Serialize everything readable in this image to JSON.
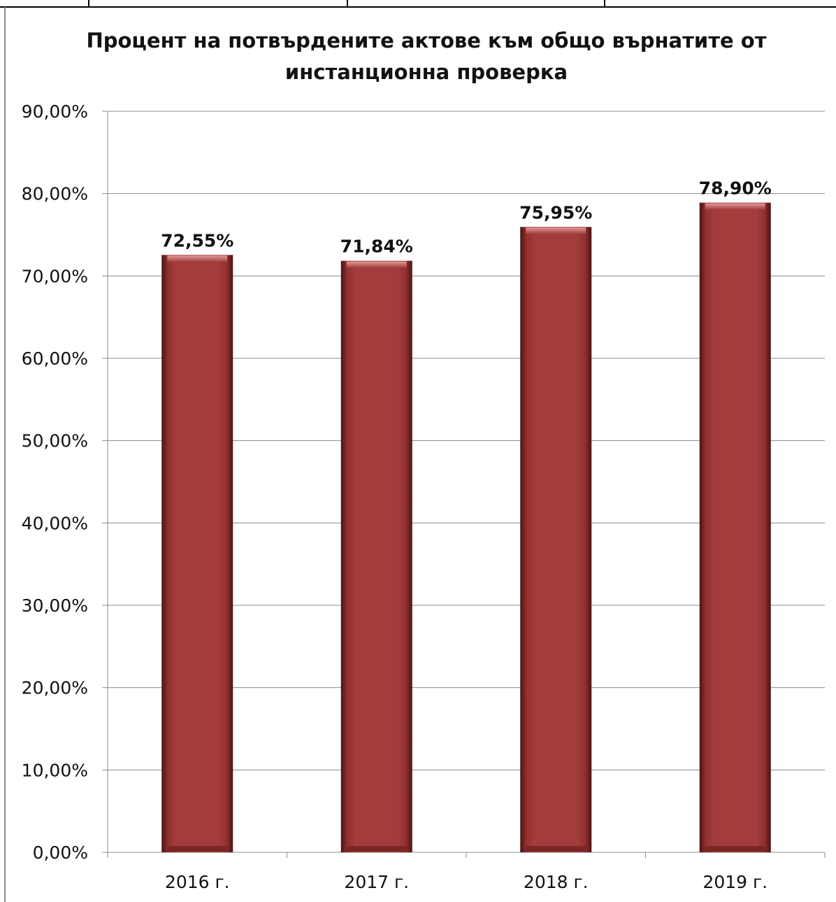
{
  "chart_data": {
    "type": "bar",
    "title_lines": [
      "Процент на потвърдените актове към общо върнатите от",
      "инстанционна проверка"
    ],
    "categories": [
      "2016 г.",
      "2017 г.",
      "2018 г.",
      "2019 г."
    ],
    "values": [
      72.55,
      71.84,
      75.95,
      78.9
    ],
    "value_labels": [
      "72,55%",
      "71,84%",
      "75,95%",
      "78,90%"
    ],
    "y_ticks": [
      "0,00%",
      "10,00%",
      "20,00%",
      "30,00%",
      "40,00%",
      "50,00%",
      "60,00%",
      "70,00%",
      "80,00%",
      "90,00%"
    ],
    "ylim": [
      0,
      90
    ],
    "y_step": 10,
    "grid": true,
    "legend": "none",
    "bar_color": "#a03a3a"
  }
}
